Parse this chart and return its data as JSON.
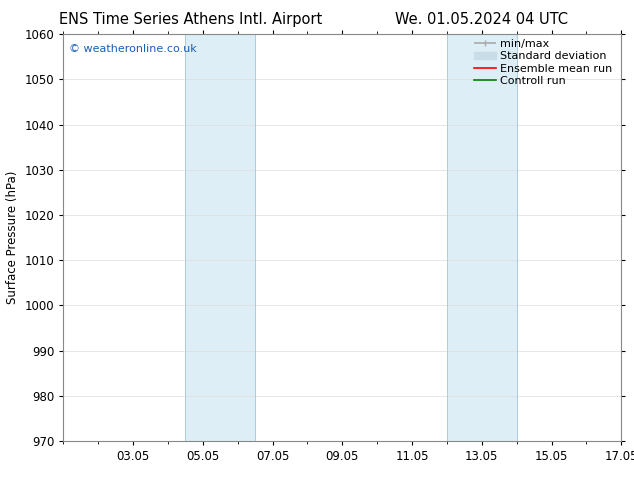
{
  "title_left": "ENS Time Series Athens Intl. Airport",
  "title_right": "We. 01.05.2024 04 UTC",
  "ylabel": "Surface Pressure (hPa)",
  "ylim": [
    970,
    1060
  ],
  "yticks": [
    970,
    980,
    990,
    1000,
    1010,
    1020,
    1030,
    1040,
    1050,
    1060
  ],
  "xlim": [
    0,
    16
  ],
  "xtick_labels": [
    "03.05",
    "05.05",
    "07.05",
    "09.05",
    "11.05",
    "13.05",
    "15.05",
    "17.05"
  ],
  "xtick_positions": [
    2,
    4,
    6,
    8,
    10,
    12,
    14,
    16
  ],
  "shaded_regions": [
    {
      "x_start": 3.5,
      "x_end": 5.5,
      "color": "#ddeef7"
    },
    {
      "x_start": 11.0,
      "x_end": 13.0,
      "color": "#ddeef7"
    }
  ],
  "vertical_lines": [
    {
      "x": 3.5,
      "color": "#aaccdd",
      "lw": 0.7
    },
    {
      "x": 5.5,
      "color": "#aaccdd",
      "lw": 0.7
    },
    {
      "x": 11.0,
      "color": "#aaccdd",
      "lw": 0.7
    },
    {
      "x": 13.0,
      "color": "#aaccdd",
      "lw": 0.7
    }
  ],
  "watermark": "© weatheronline.co.uk",
  "watermark_color": "#1a5fb4",
  "legend_items": [
    {
      "label": "min/max",
      "color": "#aaaaaa",
      "linestyle": "-",
      "lw": 1.2
    },
    {
      "label": "Standard deviation",
      "color": "#c8dde8",
      "linestyle": "-",
      "lw": 7
    },
    {
      "label": "Ensemble mean run",
      "color": "red",
      "linestyle": "-",
      "lw": 1.2
    },
    {
      "label": "Controll run",
      "color": "green",
      "linestyle": "-",
      "lw": 1.2
    }
  ],
  "bg_color": "#ffffff",
  "grid_color": "#dddddd",
  "title_fontsize": 10.5,
  "tick_fontsize": 8.5,
  "ylabel_fontsize": 8.5,
  "legend_fontsize": 8.0
}
